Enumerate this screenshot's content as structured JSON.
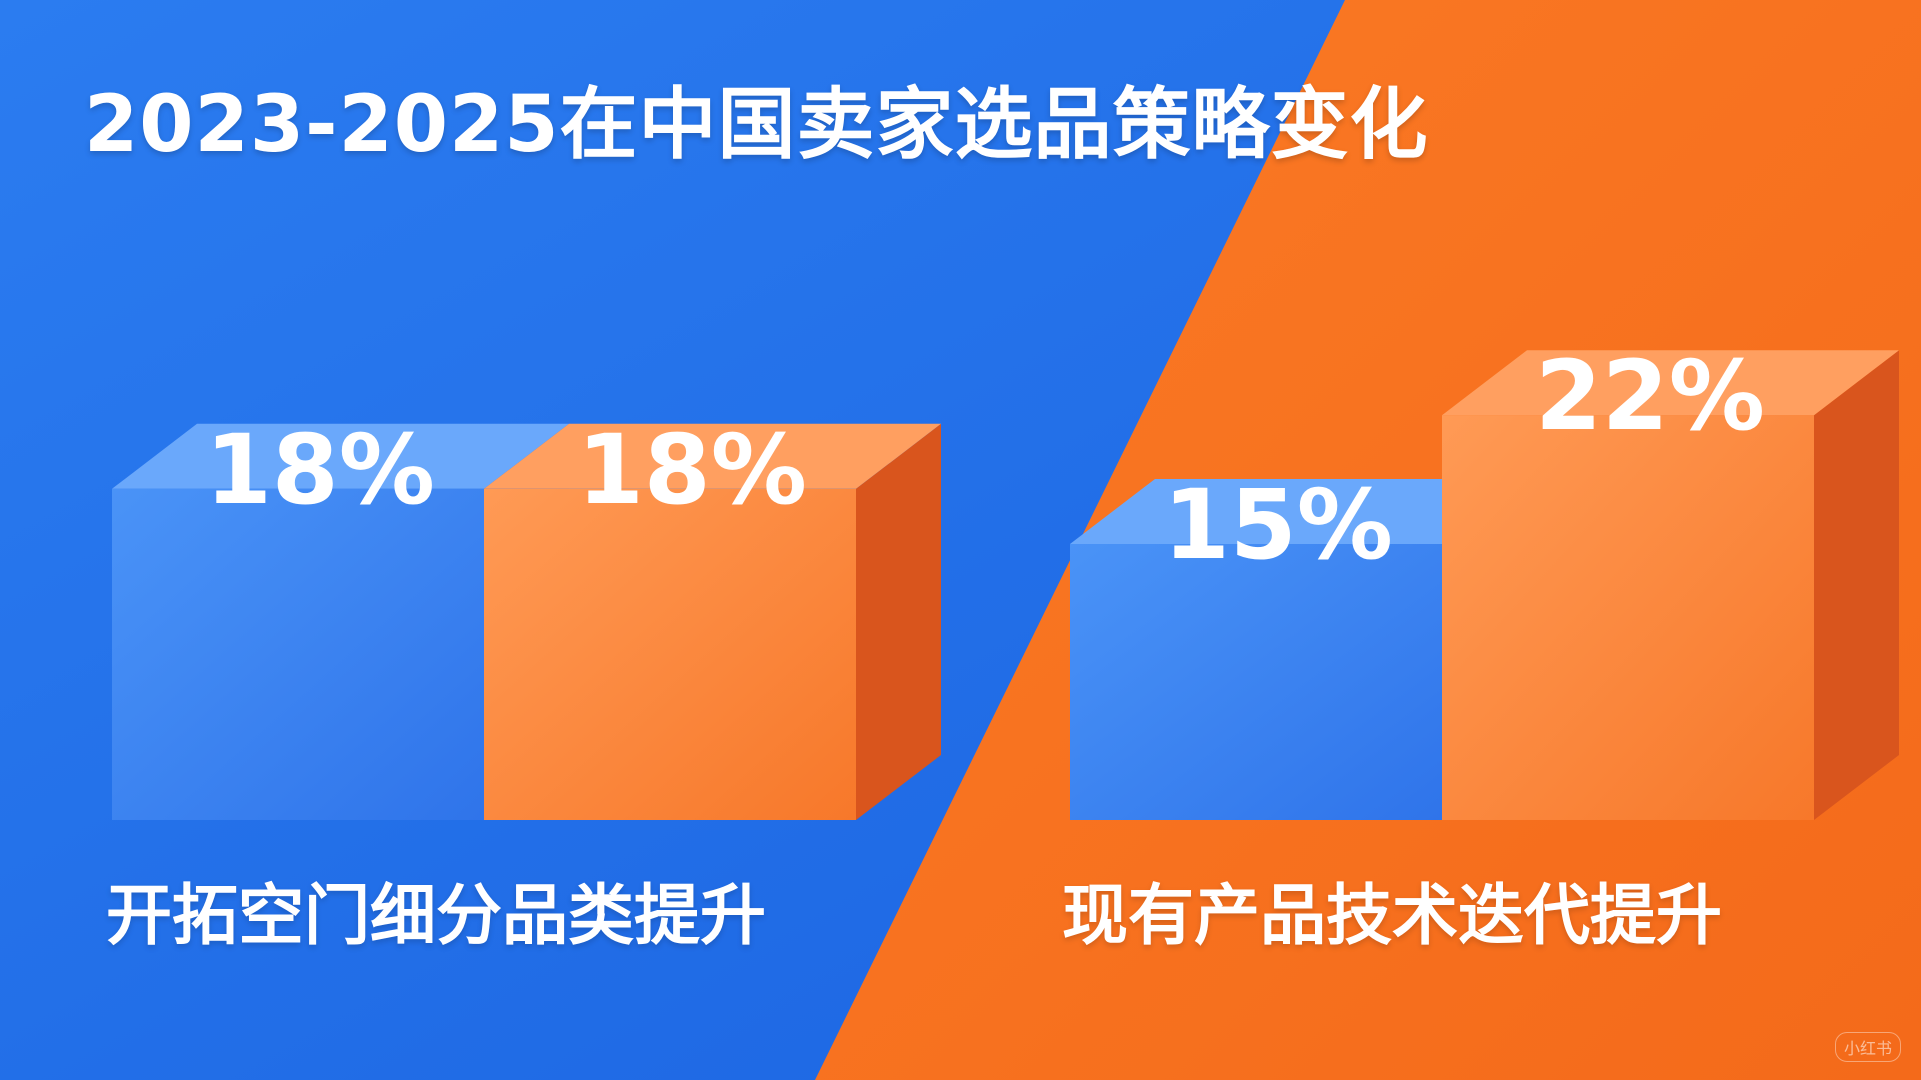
{
  "colors": {
    "blue": "#2f7cf0",
    "orange": "#f77a2c",
    "background_blue": "#1e6ce6",
    "background_orange": "#f8711f"
  },
  "watermark": "小红书",
  "chart_data": {
    "type": "bar",
    "title": "2023-2025在中国卖家选品策略变化",
    "categories": [
      "开拓空门细分品类提升",
      "现有产品技术迭代提升"
    ],
    "series": [
      {
        "color": "#2f7cf0",
        "values": [
          18,
          15
        ],
        "labels": [
          "18%",
          "15%"
        ]
      },
      {
        "color": "#f77a2c",
        "values": [
          18,
          22
        ],
        "labels": [
          "18%",
          "22%"
        ]
      }
    ],
    "unit": "%",
    "grid": false,
    "legend": "none"
  }
}
